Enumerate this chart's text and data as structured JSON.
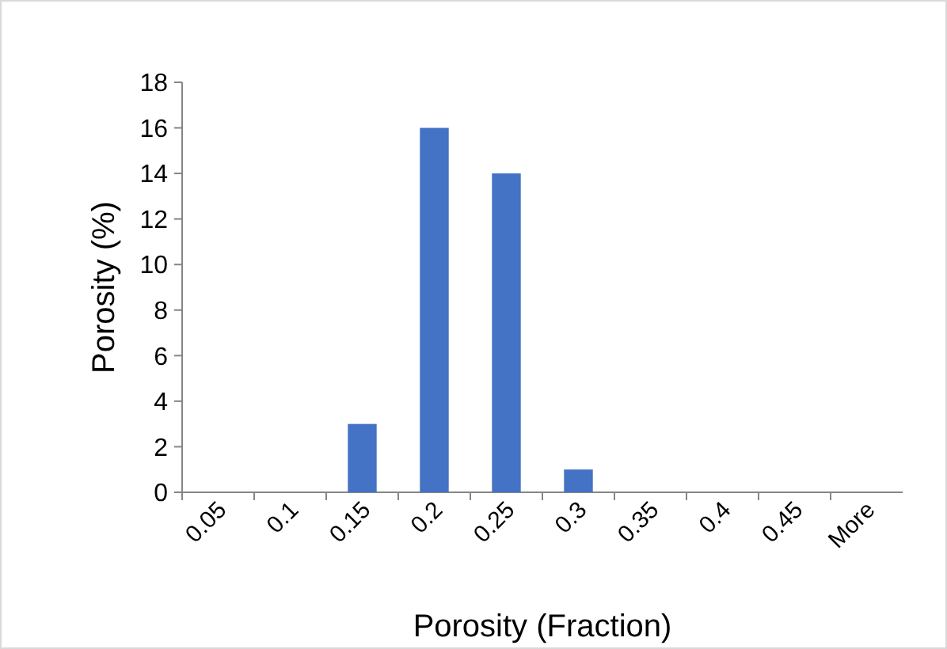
{
  "chart_data": {
    "type": "bar",
    "xlabel": "Porosity (Fraction)",
    "ylabel": "Porosity (%)",
    "categories": [
      "0.05",
      "0.1",
      "0.15",
      "0.2",
      "0.25",
      "0.3",
      "0.35",
      "0.4",
      "0.45",
      "More"
    ],
    "values": [
      0,
      0,
      3,
      16,
      14,
      1,
      0,
      0,
      0,
      0
    ],
    "color": "#4472c4",
    "ylim": [
      0,
      18
    ],
    "yticks": [
      0,
      2,
      4,
      6,
      8,
      10,
      12,
      14,
      16,
      18
    ],
    "grid": false
  }
}
